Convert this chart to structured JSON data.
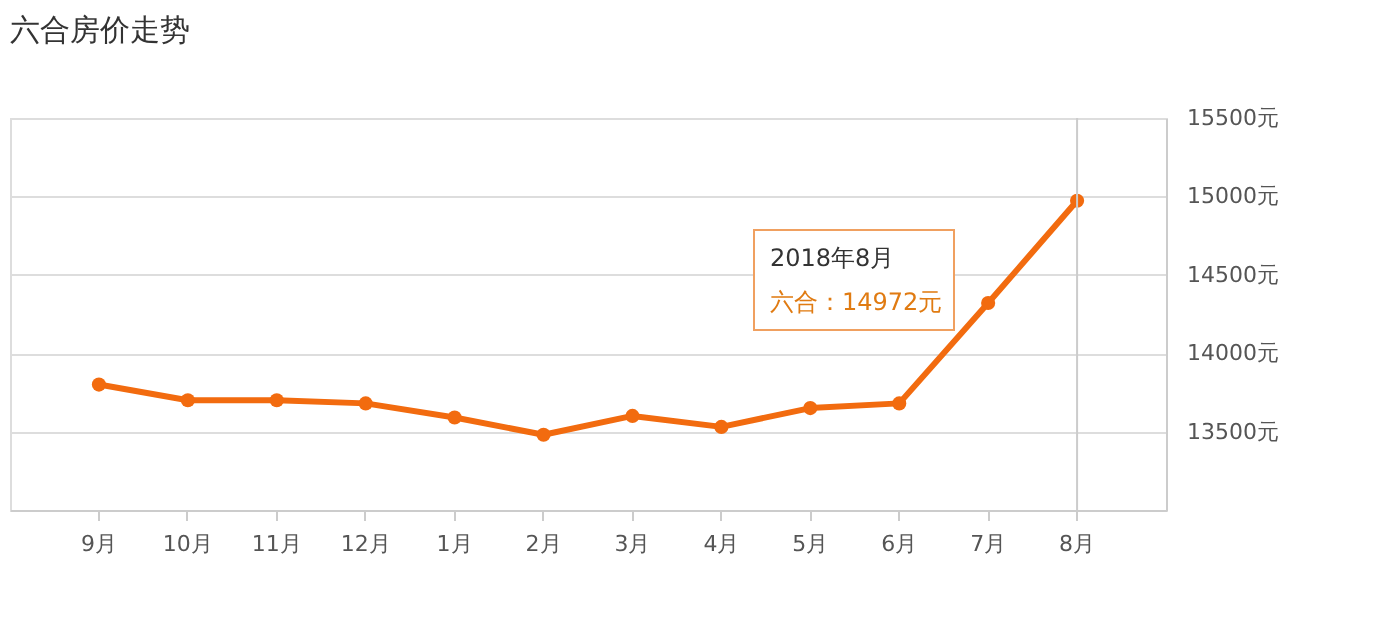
{
  "chart_data": {
    "type": "line",
    "title": "六合房价走势",
    "categories": [
      "9月",
      "10月",
      "11月",
      "12月",
      "1月",
      "2月",
      "3月",
      "4月",
      "5月",
      "6月",
      "7月",
      "8月"
    ],
    "series": [
      {
        "color": "#f26b0f",
        "values": [
          13800,
          13700,
          13700,
          13680,
          13590,
          13480,
          13600,
          13530,
          13650,
          13680,
          14320,
          14972
        ]
      }
    ],
    "ylim": [
      13000,
      15500
    ],
    "yticks": [
      {
        "value": 13500,
        "label": "13500元"
      },
      {
        "value": 14000,
        "label": "14000元"
      },
      {
        "value": 14500,
        "label": "14500元"
      },
      {
        "value": 15000,
        "label": "15000元"
      },
      {
        "value": 15500,
        "label": "15500元"
      }
    ],
    "grid": "y",
    "marker": "circle",
    "line_style": "solid",
    "ref_lines": [
      {
        "axis": "x",
        "value": "8月",
        "color": "#cccccc"
      }
    ],
    "annotations": [
      "2018年8月",
      "六合：14972元"
    ]
  }
}
